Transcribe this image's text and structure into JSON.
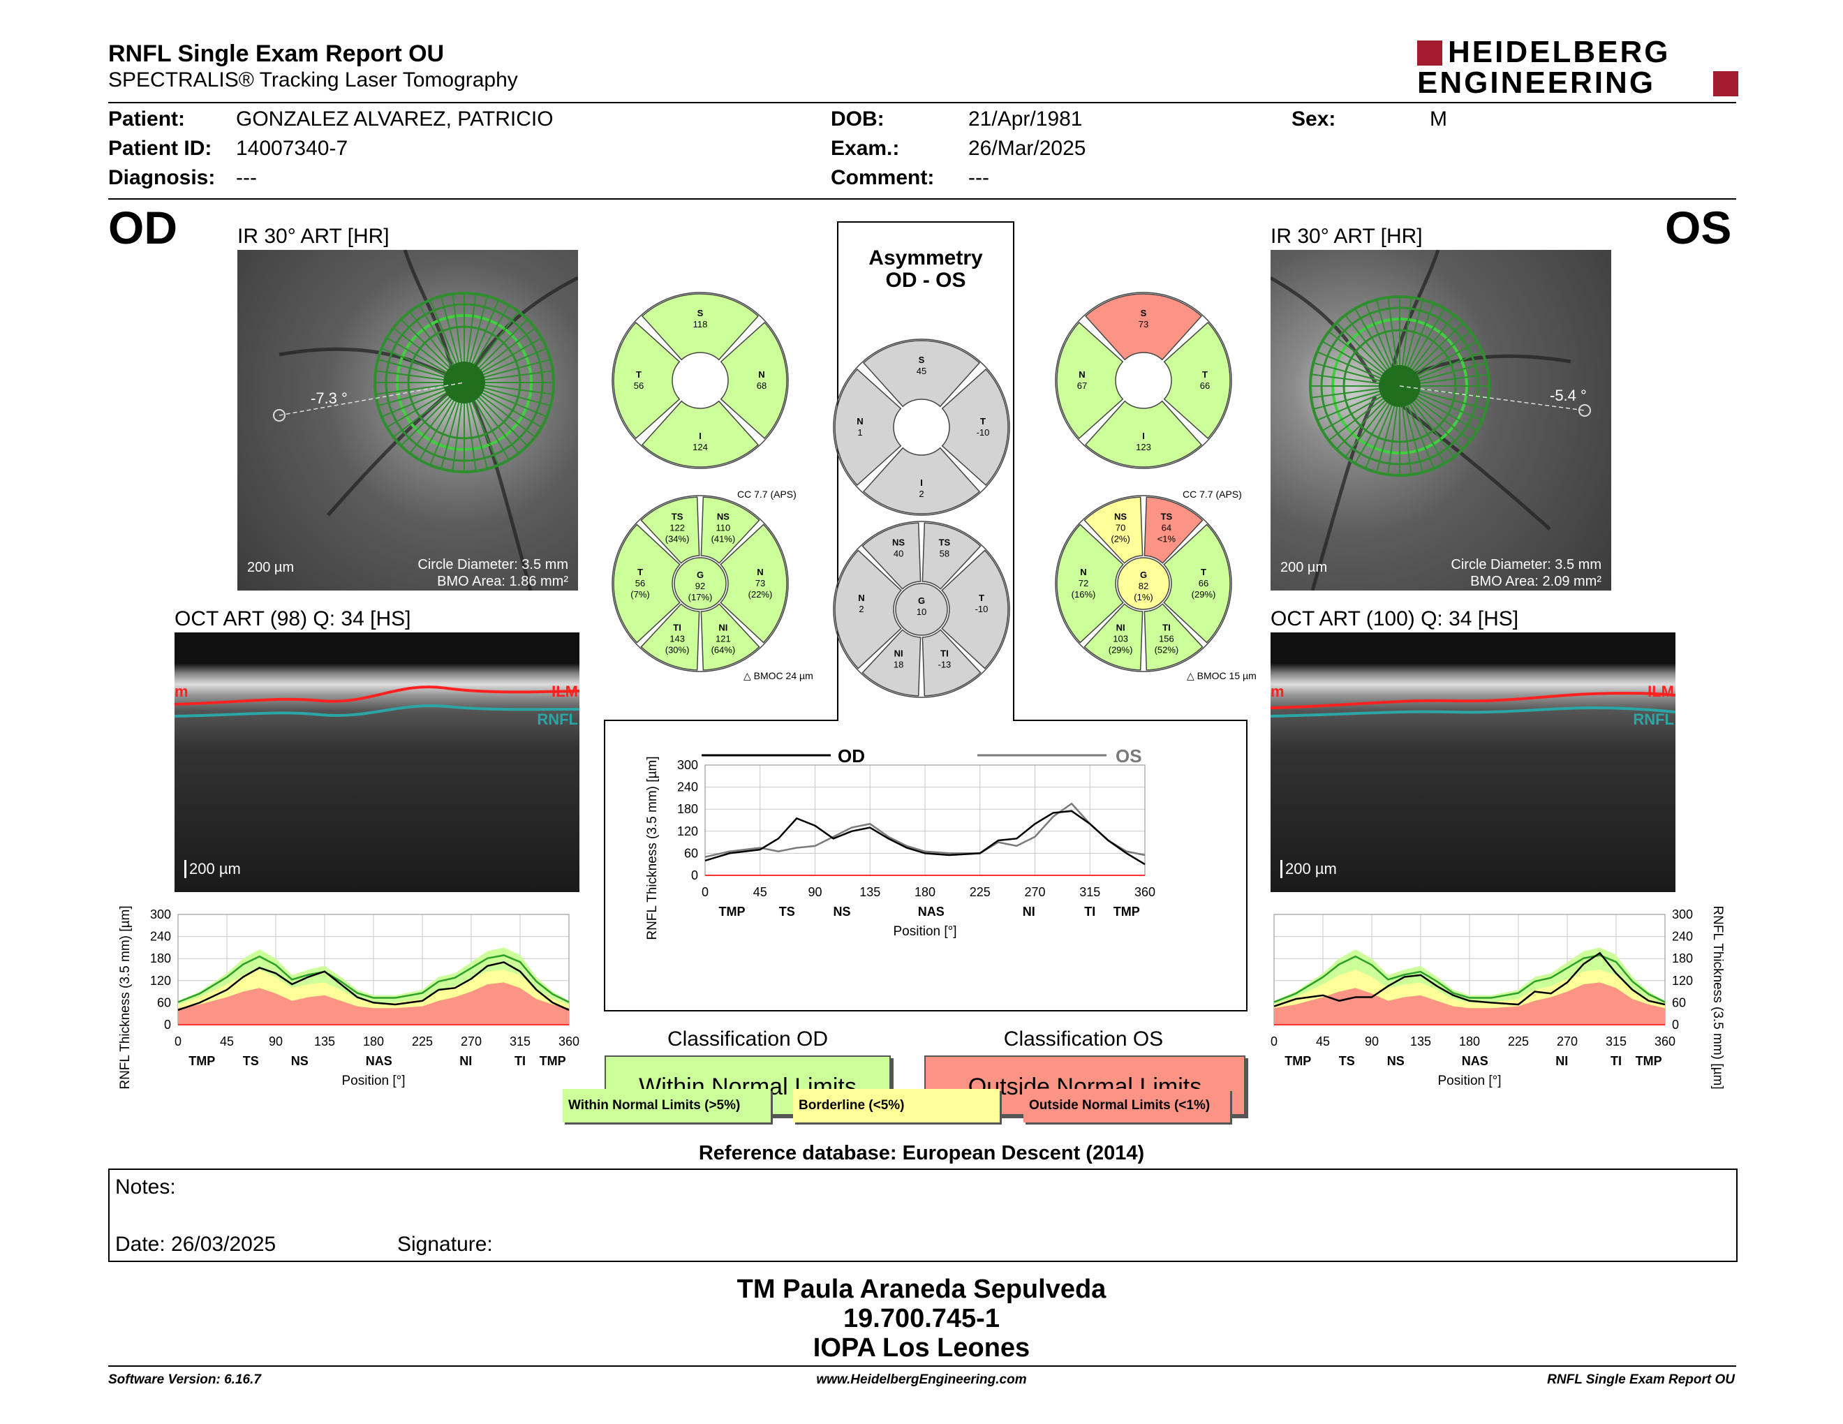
{
  "header": {
    "title": "RNFL Single Exam Report OU",
    "subtitle": "SPECTRALIS® Tracking Laser Tomography",
    "logo_line1": "HEIDELBERG",
    "logo_line2": "ENGINEERING"
  },
  "patient": {
    "patient_label": "Patient:",
    "patient_value": "GONZALEZ ALVAREZ, PATRICIO",
    "id_label": "Patient ID:",
    "id_value": "14007340-7",
    "diag_label": "Diagnosis:",
    "diag_value": "---",
    "dob_label": "DOB:",
    "dob_value": "21/Apr/1981",
    "exam_label": "Exam.:",
    "exam_value": "26/Mar/2025",
    "comment_label": "Comment:",
    "comment_value": "---",
    "sex_label": "Sex:",
    "sex_value": "M"
  },
  "od": {
    "eye": "OD",
    "ir_title": "IR 30° ART [HR]",
    "angle": "-7.3 °",
    "scale": "200 µm",
    "circle_diameter": "Circle Diameter: 3.5 mm",
    "bmo_area": "BMO Area: 1.86 mm²",
    "oct_title": "OCT ART (98) Q: 34 [HS]",
    "oct_scale": "200 µm",
    "ilm": "ILM",
    "rnfl": "RNFL",
    "ilm_cut": "m",
    "classification_title": "Classification OD",
    "classification_value": "Within Normal Limits",
    "cc": "CC 7.7 (APS)",
    "bmoc": "BMOC 24 µm",
    "sectors4": {
      "S": "118",
      "T": "56",
      "N": "68",
      "I": "124"
    },
    "sectors6": {
      "TS": [
        "122",
        "(34%)"
      ],
      "NS": [
        "110",
        "(41%)"
      ],
      "T": [
        "56",
        "(7%)"
      ],
      "G": [
        "92",
        "(17%)"
      ],
      "N": [
        "73",
        "(22%)"
      ],
      "TI": [
        "143",
        "(30%)"
      ],
      "NI": [
        "121",
        "(64%)"
      ]
    }
  },
  "os": {
    "eye": "OS",
    "ir_title": "IR 30° ART [HR]",
    "angle": "-5.4 °",
    "scale": "200 µm",
    "circle_diameter": "Circle Diameter: 3.5 mm",
    "bmo_area": "BMO Area: 2.09 mm²",
    "oct_title": "OCT ART (100) Q: 34 [HS]",
    "oct_scale": "200 µm",
    "ilm": "ILM",
    "rnfl": "RNFL",
    "ilm_cut": "m",
    "classification_title": "Classification OS",
    "classification_value": "Outside Normal Limits",
    "cc": "CC 7.7 (APS)",
    "bmoc": "BMOC 15 µm",
    "sectors4": {
      "S": "73",
      "N": "67",
      "T": "66",
      "I": "123"
    },
    "sectors6": {
      "NS": [
        "70",
        "(2%)"
      ],
      "TS": [
        "64",
        "<1%"
      ],
      "N": [
        "72",
        "(16%)"
      ],
      "G": [
        "82",
        "(1%)"
      ],
      "T": [
        "66",
        "(29%)"
      ],
      "NI": [
        "103",
        "(29%)"
      ],
      "TI": [
        "156",
        "(52%)"
      ]
    }
  },
  "asymmetry": {
    "title1": "Asymmetry",
    "title2": "OD - OS",
    "sectors4": {
      "S": "45",
      "N": "1",
      "T": "-10",
      "I": "2"
    },
    "sectors6": {
      "NS": "40",
      "TS": "58",
      "N": "2",
      "G": "10",
      "T": "-10",
      "NI": "18",
      "TI": "-13"
    }
  },
  "legend": {
    "within": "Within Normal Limits (>5%)",
    "borderline": "Borderline (<5%)",
    "outside": "Outside Normal Limits (<1%)"
  },
  "colors": {
    "within": "#ccff99",
    "borderline": "#ffff99",
    "outside": "#fb9484",
    "grey": "#d3d3d3",
    "brand": "#a31d2e"
  },
  "chart_axis": {
    "ylabel": "RNFL Thickness (3.5 mm) [µm]",
    "xlabel": "Position [°]",
    "yticks": [
      "0",
      "60",
      "120",
      "180",
      "240",
      "300"
    ],
    "xticks": [
      "0",
      "45",
      "90",
      "135",
      "180",
      "225",
      "270",
      "315",
      "360"
    ],
    "sectors": [
      "TMP",
      "TS",
      "NS",
      "NAS",
      "NI",
      "TI",
      "TMP"
    ],
    "legend_od": "OD",
    "legend_os": "OS"
  },
  "chart_data": [
    {
      "type": "line",
      "title": "OD",
      "xlabel": "Position [°]",
      "ylabel": "RNFL Thickness (3.5 mm) [µm]",
      "xlim": [
        0,
        360
      ],
      "ylim": [
        0,
        300
      ],
      "x": [
        0,
        20,
        45,
        60,
        75,
        90,
        105,
        120,
        135,
        150,
        165,
        180,
        200,
        225,
        240,
        255,
        270,
        285,
        300,
        315,
        330,
        345,
        360
      ],
      "series": [
        {
          "name": "OD",
          "values": [
            40,
            60,
            95,
            130,
            155,
            140,
            110,
            130,
            145,
            110,
            75,
            60,
            55,
            65,
            95,
            100,
            125,
            160,
            170,
            145,
            95,
            60,
            40
          ]
        },
        {
          "name": "Normal (within)",
          "values": [
            65,
            90,
            140,
            180,
            205,
            180,
            135,
            150,
            160,
            130,
            95,
            80,
            80,
            95,
            130,
            140,
            170,
            200,
            210,
            190,
            130,
            90,
            65
          ]
        },
        {
          "name": "Borderline",
          "values": [
            55,
            75,
            110,
            135,
            150,
            130,
            100,
            110,
            115,
            95,
            70,
            60,
            60,
            70,
            95,
            105,
            125,
            145,
            150,
            135,
            95,
            70,
            55
          ]
        },
        {
          "name": "Outside",
          "values": [
            45,
            55,
            75,
            90,
            100,
            85,
            65,
            75,
            80,
            65,
            50,
            45,
            45,
            50,
            65,
            75,
            90,
            110,
            115,
            100,
            70,
            55,
            45
          ]
        }
      ]
    },
    {
      "type": "line",
      "title": "OD / OS",
      "xlabel": "Position [°]",
      "ylabel": "RNFL Thickness (3.5 mm) [µm]",
      "xlim": [
        0,
        360
      ],
      "ylim": [
        0,
        300
      ],
      "x": [
        0,
        20,
        45,
        60,
        75,
        90,
        105,
        120,
        135,
        150,
        165,
        180,
        200,
        225,
        240,
        255,
        270,
        285,
        300,
        315,
        330,
        345,
        360
      ],
      "series": [
        {
          "name": "OD",
          "values": [
            40,
            60,
            70,
            100,
            155,
            135,
            100,
            120,
            130,
            100,
            75,
            60,
            55,
            60,
            95,
            100,
            140,
            170,
            175,
            140,
            95,
            60,
            30
          ]
        },
        {
          "name": "OS",
          "values": [
            50,
            65,
            75,
            65,
            75,
            80,
            105,
            130,
            140,
            105,
            80,
            65,
            60,
            60,
            90,
            80,
            105,
            160,
            195,
            140,
            95,
            65,
            55
          ]
        }
      ]
    },
    {
      "type": "line",
      "title": "OS",
      "xlabel": "Position [°]",
      "ylabel": "RNFL Thickness (3.5 mm) [µm]",
      "xlim": [
        0,
        360
      ],
      "ylim": [
        0,
        300
      ],
      "x": [
        0,
        20,
        45,
        60,
        75,
        90,
        105,
        120,
        135,
        150,
        165,
        180,
        200,
        225,
        240,
        255,
        270,
        285,
        300,
        315,
        330,
        345,
        360
      ],
      "series": [
        {
          "name": "OS",
          "values": [
            50,
            70,
            80,
            65,
            75,
            75,
            105,
            130,
            135,
            105,
            80,
            65,
            60,
            55,
            90,
            85,
            115,
            165,
            195,
            140,
            95,
            65,
            55
          ]
        },
        {
          "name": "Normal (within)",
          "values": [
            65,
            90,
            140,
            180,
            205,
            180,
            135,
            150,
            160,
            130,
            95,
            80,
            80,
            95,
            130,
            140,
            170,
            200,
            210,
            190,
            130,
            90,
            65
          ]
        },
        {
          "name": "Borderline",
          "values": [
            55,
            75,
            110,
            135,
            150,
            130,
            100,
            110,
            115,
            95,
            70,
            60,
            60,
            70,
            95,
            105,
            125,
            145,
            150,
            135,
            95,
            70,
            55
          ]
        },
        {
          "name": "Outside",
          "values": [
            45,
            55,
            75,
            90,
            100,
            85,
            65,
            75,
            80,
            65,
            50,
            45,
            45,
            50,
            65,
            75,
            90,
            110,
            115,
            100,
            70,
            55,
            45
          ]
        }
      ]
    }
  ],
  "reference": "Reference database: European Descent (2014)",
  "notes": {
    "notes_label": "Notes:",
    "date_label": "Date: 26/03/2025",
    "signature_label": "Signature:"
  },
  "signature": {
    "line1": "TM Paula Araneda Sepulveda",
    "line2": "19.700.745-1",
    "line3": "IOPA Los Leones"
  },
  "footer": {
    "software": "Software Version: 6.16.7",
    "website": "www.HeidelbergEngineering.com",
    "report": "RNFL Single Exam Report OU"
  }
}
